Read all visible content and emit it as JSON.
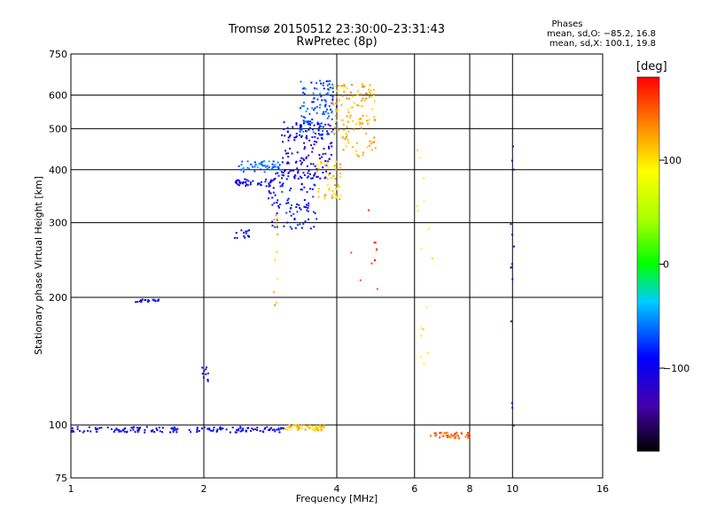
{
  "title": {
    "line1": "Tromsø 20150512 23:30:00–23:31:43",
    "line2": "RwPretec (8p)"
  },
  "phases": {
    "heading": "Phases",
    "o_stats": "mean, sd,O: −85.2, 16.8",
    "x_stats": "mean, sd,X: 100.1, 19.8"
  },
  "colorbar": {
    "unit": "[deg]",
    "ticks": [
      "100",
      "0",
      "−100"
    ],
    "tick_values": [
      100,
      0,
      -100
    ],
    "range": [
      -180,
      180
    ]
  },
  "chart_data": {
    "type": "scatter",
    "xlabel": "Frequency [MHz]",
    "ylabel": "Stationary phase Virtual Height [km]",
    "xscale": "log",
    "yscale": "log",
    "xlim": [
      1,
      16
    ],
    "ylim": [
      75,
      750
    ],
    "x_ticks": [
      1,
      2,
      4,
      6,
      8,
      10,
      16
    ],
    "x_tick_labels": [
      "1",
      "2",
      "4",
      "6",
      "8",
      "10",
      "16"
    ],
    "y_ticks": [
      75,
      100,
      200,
      300,
      400,
      500,
      600,
      750
    ],
    "y_tick_labels": [
      "75",
      "100",
      "200",
      "300",
      "400",
      "500",
      "600",
      "750"
    ],
    "grid": true,
    "clusters": [
      {
        "f": [
          1.0,
          3.05
        ],
        "h": [
          96,
          99
        ],
        "phase": -95,
        "n": 160
      },
      {
        "f": [
          3.05,
          3.75
        ],
        "h": [
          97,
          100
        ],
        "phase": 110,
        "n": 60
      },
      {
        "f": [
          1.4,
          1.6
        ],
        "h": [
          195,
          198
        ],
        "phase": -95,
        "n": 22
      },
      {
        "f": [
          1.98,
          2.05
        ],
        "h": [
          126,
          138
        ],
        "phase": -100,
        "n": 10
      },
      {
        "f": [
          2.35,
          2.6
        ],
        "h": [
          276,
          290
        ],
        "phase": -95,
        "n": 14
      },
      {
        "f": [
          2.35,
          2.9
        ],
        "h": [
          365,
          380
        ],
        "phase": -100,
        "n": 40
      },
      {
        "f": [
          2.4,
          3.0
        ],
        "h": [
          395,
          420
        ],
        "phase": -60,
        "n": 50
      },
      {
        "f": [
          2.8,
          3.6
        ],
        "h": [
          290,
          400
        ],
        "phase": -90,
        "n": 110
      },
      {
        "f": [
          3.0,
          3.9
        ],
        "h": [
          380,
          520
        ],
        "phase": -105,
        "n": 140
      },
      {
        "f": [
          3.3,
          4.0
        ],
        "h": [
          480,
          650
        ],
        "phase": -70,
        "n": 120
      },
      {
        "f": [
          3.6,
          4.1
        ],
        "h": [
          340,
          420
        ],
        "phase": 110,
        "n": 50
      },
      {
        "f": [
          3.9,
          4.9
        ],
        "h": [
          430,
          640
        ],
        "phase": 120,
        "n": 120
      },
      {
        "f": [
          2.88,
          2.94
        ],
        "h": [
          180,
          320
        ],
        "phase": 115,
        "n": 12
      },
      {
        "f": [
          6.5,
          8.0
        ],
        "h": [
          93,
          96
        ],
        "phase": 150,
        "n": 45
      },
      {
        "f": [
          9.9,
          10.1
        ],
        "h": [
          95,
          460
        ],
        "phase": -120,
        "n": 14
      },
      {
        "f": [
          6.0,
          6.6
        ],
        "h": [
          130,
          520
        ],
        "phase": 90,
        "n": 16
      },
      {
        "f": [
          4.3,
          5.1
        ],
        "h": [
          200,
          330
        ],
        "phase": 160,
        "n": 10
      }
    ]
  }
}
